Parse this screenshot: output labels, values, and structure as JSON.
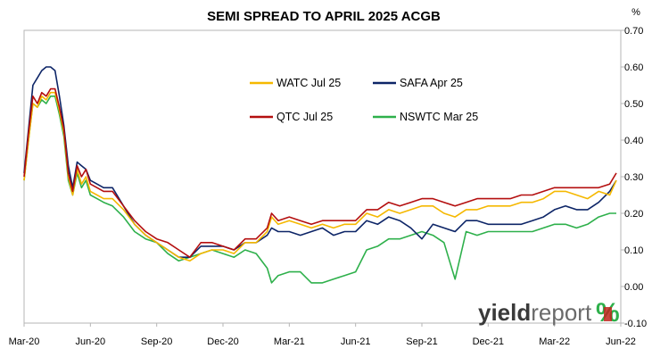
{
  "chart_data": {
    "type": "line",
    "title": "SEMI SPREAD TO APRIL 2025 ACGB",
    "unit_label": "%",
    "xlabel": "",
    "ylabel": "",
    "x_tick_labels": [
      "Mar-20",
      "Jun-20",
      "Sep-20",
      "Dec-20",
      "Mar-21",
      "Jun-21",
      "Sep-21",
      "Dec-21",
      "Mar-22",
      "Jun-22"
    ],
    "y_tick_labels": [
      "-0.10",
      "0.00",
      "0.10",
      "0.20",
      "0.30",
      "0.40",
      "0.50",
      "0.60",
      "0.70"
    ],
    "ylim": [
      -0.1,
      0.7
    ],
    "xlim": [
      0,
      27
    ],
    "x_units": "months since Mar-20 (tick labels shown above)",
    "grid": false,
    "legend_position": "inside-top-center",
    "series": [
      {
        "name": "WATC Jul 25",
        "color": "#f5b800",
        "x": [
          0,
          0.2,
          0.4,
          0.6,
          0.8,
          1.0,
          1.2,
          1.4,
          1.6,
          1.8,
          2.0,
          2.2,
          2.4,
          2.6,
          2.8,
          3.0,
          3.3,
          3.6,
          4.0,
          4.5,
          5.0,
          5.5,
          6.0,
          6.5,
          7.0,
          7.5,
          8.0,
          8.5,
          9.0,
          9.5,
          10.0,
          10.5,
          11.0,
          11.2,
          11.5,
          12.0,
          12.5,
          13.0,
          13.5,
          14.0,
          14.5,
          15.0,
          15.5,
          16.0,
          16.5,
          17.0,
          17.5,
          18.0,
          18.5,
          19.0,
          19.5,
          20.0,
          20.5,
          21.0,
          21.5,
          22.0,
          22.5,
          23.0,
          23.5,
          24.0,
          24.5,
          25.0,
          25.5,
          26.0,
          26.5,
          26.8
        ],
        "values": [
          0.29,
          0.4,
          0.5,
          0.49,
          0.52,
          0.51,
          0.53,
          0.53,
          0.48,
          0.42,
          0.3,
          0.25,
          0.32,
          0.28,
          0.3,
          0.26,
          0.25,
          0.24,
          0.24,
          0.21,
          0.17,
          0.14,
          0.12,
          0.1,
          0.08,
          0.07,
          0.09,
          0.1,
          0.1,
          0.09,
          0.12,
          0.12,
          0.15,
          0.19,
          0.17,
          0.18,
          0.17,
          0.16,
          0.17,
          0.16,
          0.17,
          0.17,
          0.2,
          0.19,
          0.21,
          0.2,
          0.21,
          0.22,
          0.22,
          0.2,
          0.19,
          0.21,
          0.21,
          0.22,
          0.22,
          0.22,
          0.23,
          0.23,
          0.24,
          0.26,
          0.26,
          0.25,
          0.24,
          0.26,
          0.25,
          0.29
        ]
      },
      {
        "name": "SAFA Apr 25",
        "color": "#0d2567",
        "x": [
          0,
          0.2,
          0.4,
          0.6,
          0.8,
          1.0,
          1.2,
          1.4,
          1.6,
          1.8,
          2.0,
          2.2,
          2.4,
          2.6,
          2.8,
          3.0,
          3.3,
          3.6,
          4.0,
          4.5,
          5.0,
          5.5,
          6.0,
          6.5,
          7.0,
          7.5,
          8.0,
          8.5,
          9.0,
          9.5,
          10.0,
          10.5,
          11.0,
          11.2,
          11.5,
          12.0,
          12.5,
          13.0,
          13.5,
          14.0,
          14.5,
          15.0,
          15.5,
          16.0,
          16.5,
          17.0,
          17.5,
          18.0,
          18.5,
          19.0,
          19.5,
          20.0,
          20.5,
          21.0,
          21.5,
          22.0,
          22.5,
          23.0,
          23.5,
          24.0,
          24.5,
          25.0,
          25.5,
          26.0,
          26.5,
          26.8
        ],
        "values": [
          0.31,
          0.43,
          0.55,
          0.57,
          0.59,
          0.6,
          0.6,
          0.59,
          0.52,
          0.44,
          0.33,
          0.27,
          0.34,
          0.33,
          0.32,
          0.29,
          0.28,
          0.27,
          0.27,
          0.22,
          0.17,
          0.14,
          0.12,
          0.1,
          0.08,
          0.08,
          0.11,
          0.11,
          0.11,
          0.1,
          0.12,
          0.12,
          0.14,
          0.16,
          0.15,
          0.15,
          0.14,
          0.15,
          0.16,
          0.14,
          0.15,
          0.15,
          0.18,
          0.17,
          0.19,
          0.18,
          0.16,
          0.13,
          0.17,
          0.16,
          0.15,
          0.18,
          0.18,
          0.17,
          0.17,
          0.17,
          0.17,
          0.18,
          0.19,
          0.21,
          0.22,
          0.21,
          0.21,
          0.23,
          0.26,
          0.29
        ]
      },
      {
        "name": "QTC Jul 25",
        "color": "#b40f0f",
        "x": [
          0,
          0.2,
          0.4,
          0.6,
          0.8,
          1.0,
          1.2,
          1.4,
          1.6,
          1.8,
          2.0,
          2.2,
          2.4,
          2.6,
          2.8,
          3.0,
          3.3,
          3.6,
          4.0,
          4.5,
          5.0,
          5.5,
          6.0,
          6.5,
          7.0,
          7.5,
          8.0,
          8.5,
          9.0,
          9.5,
          10.0,
          10.5,
          11.0,
          11.2,
          11.5,
          12.0,
          12.5,
          13.0,
          13.5,
          14.0,
          14.5,
          15.0,
          15.5,
          16.0,
          16.5,
          17.0,
          17.5,
          18.0,
          18.5,
          19.0,
          19.5,
          20.0,
          20.5,
          21.0,
          21.5,
          22.0,
          22.5,
          23.0,
          23.5,
          24.0,
          24.5,
          25.0,
          25.5,
          26.0,
          26.5,
          26.8
        ],
        "values": [
          0.3,
          0.42,
          0.52,
          0.5,
          0.53,
          0.52,
          0.54,
          0.54,
          0.49,
          0.43,
          0.31,
          0.26,
          0.33,
          0.3,
          0.32,
          0.28,
          0.27,
          0.26,
          0.26,
          0.22,
          0.18,
          0.15,
          0.13,
          0.12,
          0.1,
          0.08,
          0.12,
          0.12,
          0.11,
          0.1,
          0.13,
          0.13,
          0.16,
          0.2,
          0.18,
          0.19,
          0.18,
          0.17,
          0.18,
          0.18,
          0.18,
          0.18,
          0.21,
          0.21,
          0.23,
          0.22,
          0.23,
          0.24,
          0.24,
          0.23,
          0.22,
          0.23,
          0.24,
          0.24,
          0.24,
          0.24,
          0.25,
          0.25,
          0.26,
          0.27,
          0.27,
          0.27,
          0.27,
          0.27,
          0.28,
          0.31
        ]
      },
      {
        "name": "NSWTC Mar 25",
        "color": "#2eb04b",
        "x": [
          0,
          0.2,
          0.4,
          0.6,
          0.8,
          1.0,
          1.2,
          1.4,
          1.6,
          1.8,
          2.0,
          2.2,
          2.4,
          2.6,
          2.8,
          3.0,
          3.3,
          3.6,
          4.0,
          4.5,
          5.0,
          5.5,
          6.0,
          6.5,
          7.0,
          7.5,
          8.0,
          8.5,
          9.0,
          9.5,
          10.0,
          10.5,
          11.0,
          11.2,
          11.5,
          12.0,
          12.5,
          13.0,
          13.5,
          14.0,
          14.5,
          15.0,
          15.5,
          16.0,
          16.5,
          17.0,
          17.5,
          18.0,
          18.5,
          19.0,
          19.5,
          20.0,
          20.5,
          21.0,
          21.5,
          22.0,
          22.5,
          23.0,
          23.5,
          24.0,
          24.5,
          25.0,
          25.5,
          26.0,
          26.5,
          26.8
        ],
        "values": [
          0.29,
          0.4,
          0.5,
          0.49,
          0.51,
          0.5,
          0.52,
          0.52,
          0.47,
          0.41,
          0.29,
          0.25,
          0.31,
          0.27,
          0.29,
          0.25,
          0.24,
          0.23,
          0.22,
          0.19,
          0.15,
          0.13,
          0.12,
          0.09,
          0.07,
          0.08,
          0.09,
          0.1,
          0.09,
          0.08,
          0.1,
          0.09,
          0.05,
          0.01,
          0.03,
          0.04,
          0.04,
          0.01,
          0.01,
          0.02,
          0.03,
          0.04,
          0.1,
          0.11,
          0.13,
          0.13,
          0.14,
          0.15,
          0.14,
          0.12,
          0.02,
          0.15,
          0.14,
          0.15,
          0.15,
          0.15,
          0.15,
          0.15,
          0.16,
          0.17,
          0.17,
          0.16,
          0.17,
          0.19,
          0.2,
          0.2
        ]
      }
    ]
  },
  "logo": {
    "text_bold": "yield",
    "text_light": "report",
    "symbol": "%",
    "colors": {
      "green": "#2eb04b",
      "red": "#c0261f"
    }
  }
}
